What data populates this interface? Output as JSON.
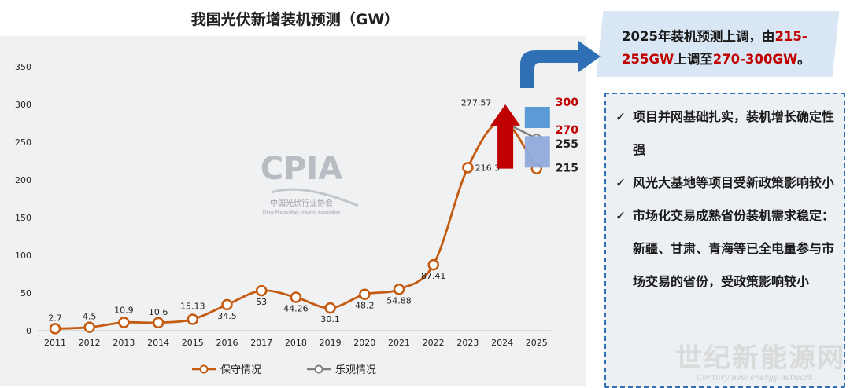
{
  "title": "我国光伏新增装机预测（GW）",
  "chart_data": {
    "type": "line",
    "title": "我国光伏新增装机预测（GW）",
    "categories": [
      "2011",
      "2012",
      "2013",
      "2014",
      "2015",
      "2016",
      "2017",
      "2018",
      "2019",
      "2020",
      "2021",
      "2022",
      "2023",
      "2024",
      "2025"
    ],
    "ylim": [
      0,
      350
    ],
    "yticks": [
      0,
      50,
      100,
      150,
      200,
      250,
      300,
      350
    ],
    "grid": false,
    "legend_position": "bottom",
    "series": [
      {
        "name": "保守情况",
        "color": "#c55a11",
        "values": [
          2.7,
          4.5,
          10.9,
          10.6,
          15.13,
          34.5,
          53,
          44.26,
          30.1,
          48.2,
          54.88,
          87.41,
          216.3,
          277.57,
          215
        ],
        "labels": [
          "2.7",
          "4.5",
          "10.9",
          "10.6",
          "15.13",
          "34.5",
          "53",
          "44.26",
          "30.1",
          "48.2",
          "54.88",
          "87.41",
          "216.3",
          "277.57",
          ""
        ]
      },
      {
        "name": "乐观情况",
        "color": "#808080",
        "values": [
          null,
          null,
          null,
          null,
          null,
          null,
          null,
          null,
          null,
          null,
          null,
          null,
          null,
          277.57,
          255
        ]
      }
    ],
    "range_labels": {
      "upper_high": "300",
      "upper_low": "270",
      "lower_high": "255",
      "lower_low": "215"
    }
  },
  "logo": {
    "text": "CPIA",
    "subtitle": "中国光伏行业协会",
    "english": "China Photovoltaic Industry Association"
  },
  "callout": {
    "line1": "2025年装机预测上调，由",
    "hl1": "215-",
    "hl2": "255GW",
    "mid": "上调至",
    "hl3": "270-300GW",
    "end": "。"
  },
  "bullets": [
    "项目并网基础扎实，装机增长确定性强",
    "风光大基地等项目受新政策影响较小",
    "市场化交易成熟省份装机需求稳定：新疆、甘肃、青海等已全电量参与市场交易的省份，受政策影响较小"
  ],
  "check_symbol": "✓",
  "watermark": {
    "text": "世纪新能源网",
    "sub": "Century new energy network"
  },
  "colors": {
    "series1": "#c55a11",
    "series2": "#808080",
    "accent_blue": "#2f6fb5",
    "red": "#c00000"
  }
}
